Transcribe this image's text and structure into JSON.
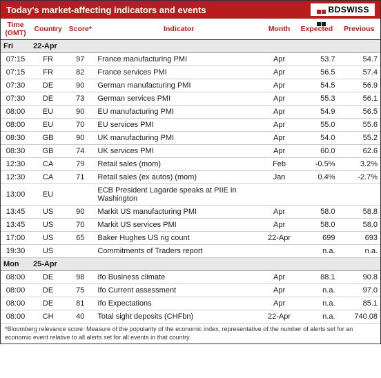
{
  "header": {
    "title": "Today's market-affecting indicators and events",
    "logo_text": "BDSWISS",
    "logo_colors": [
      "#b91c1c",
      "#b91c1c",
      "#1a1a1a",
      "#1a1a1a"
    ]
  },
  "columns": {
    "time": "Time (GMT)",
    "country": "Country",
    "score": "Score*",
    "indicator": "Indicator",
    "month": "Month",
    "expected": "Expected",
    "previous": "Previous"
  },
  "days": [
    {
      "label": "Fri",
      "date": "22-Apr"
    },
    {
      "label": "Mon",
      "date": "25-Apr"
    }
  ],
  "rows": [
    {
      "day": 0,
      "time": "07:15",
      "country": "FR",
      "score": "97",
      "indicator": "France manufacturing PMI",
      "month": "Apr",
      "expected": "53.7",
      "previous": "54.7"
    },
    {
      "day": 0,
      "time": "07:15",
      "country": "FR",
      "score": "82",
      "indicator": "France services PMI",
      "month": "Apr",
      "expected": "56.5",
      "previous": "57.4"
    },
    {
      "day": 0,
      "time": "07:30",
      "country": "DE",
      "score": "90",
      "indicator": "German manufacturing PMI",
      "month": "Apr",
      "expected": "54.5",
      "previous": "56.9"
    },
    {
      "day": 0,
      "time": "07:30",
      "country": "DE",
      "score": "73",
      "indicator": "German services PMI",
      "month": "Apr",
      "expected": "55.3",
      "previous": "56.1"
    },
    {
      "day": 0,
      "time": "08:00",
      "country": "EU",
      "score": "90",
      "indicator": "EU manufacturing PMI",
      "month": "Apr",
      "expected": "54.9",
      "previous": "56.5"
    },
    {
      "day": 0,
      "time": "08:00",
      "country": "EU",
      "score": "70",
      "indicator": "EU services PMI",
      "month": "Apr",
      "expected": "55.0",
      "previous": "55.6"
    },
    {
      "day": 0,
      "time": "08:30",
      "country": "GB",
      "score": "90",
      "indicator": "UK manufacturing PMI",
      "month": "Apr",
      "expected": "54.0",
      "previous": "55.2"
    },
    {
      "day": 0,
      "time": "08:30",
      "country": "GB",
      "score": "74",
      "indicator": "UK services PMI",
      "month": "Apr",
      "expected": "60.0",
      "previous": "62.6"
    },
    {
      "day": 0,
      "time": "12:30",
      "country": "CA",
      "score": "79",
      "indicator": "Retail sales (mom)",
      "month": "Feb",
      "expected": "-0.5%",
      "previous": "3.2%"
    },
    {
      "day": 0,
      "time": "12:30",
      "country": "CA",
      "score": "71",
      "indicator": "Retail sales (ex autos) (mom)",
      "month": "Jan",
      "expected": "0.4%",
      "previous": "-2.7%"
    },
    {
      "day": 0,
      "time": "13:00",
      "country": "EU",
      "score": "",
      "indicator": "ECB President Lagarde speaks at PIIE in Washington",
      "month": "",
      "expected": "",
      "previous": ""
    },
    {
      "day": 0,
      "time": "13:45",
      "country": "US",
      "score": "90",
      "indicator": "Markit US manufacturing PMI",
      "month": "Apr",
      "expected": "58.0",
      "previous": "58.8"
    },
    {
      "day": 0,
      "time": "13:45",
      "country": "US",
      "score": "70",
      "indicator": "Markit US services PMI",
      "month": "Apr",
      "expected": "58.0",
      "previous": "58.0"
    },
    {
      "day": 0,
      "time": "17:00",
      "country": "US",
      "score": "65",
      "indicator": "Baker Hughes US rig count",
      "month": "22-Apr",
      "expected": "699",
      "previous": "693"
    },
    {
      "day": 0,
      "time": "19:30",
      "country": "US",
      "score": "",
      "indicator": "Commitments of Traders  report",
      "month": "",
      "expected": "n.a.",
      "previous": "n.a."
    },
    {
      "day": 1,
      "time": "08:00",
      "country": "DE",
      "score": "98",
      "indicator": "Ifo Business climate",
      "month": "Apr",
      "expected": "88.1",
      "previous": "90.8"
    },
    {
      "day": 1,
      "time": "08:00",
      "country": "DE",
      "score": "75",
      "indicator": "Ifo Current assessment",
      "month": "Apr",
      "expected": "n.a.",
      "previous": "97.0"
    },
    {
      "day": 1,
      "time": "08:00",
      "country": "DE",
      "score": "81",
      "indicator": "Ifo Expectations",
      "month": "Apr",
      "expected": "n.a.",
      "previous": "85.1"
    },
    {
      "day": 1,
      "time": "08:00",
      "country": "CH",
      "score": "40",
      "indicator": "Total sight deposits (CHFbn)",
      "month": "22-Apr",
      "expected": "n.a.",
      "previous": "740.08"
    }
  ],
  "footnote": "*Bloomberg relevance score:  Measure of the popularity of the economic index, representative of the number of alerts set for an economic event relative to all alerts set for all events in that country.",
  "style": {
    "header_bg": "#b91c1c",
    "header_text_color": "#ffffff",
    "th_text_color": "#b91c1c",
    "day_row_bg": "#e8e8e8",
    "border_color": "#333333",
    "row_border_color": "#cccccc",
    "body_font_size": 11,
    "th_font_size": 10.5,
    "footnote_font_size": 9
  }
}
